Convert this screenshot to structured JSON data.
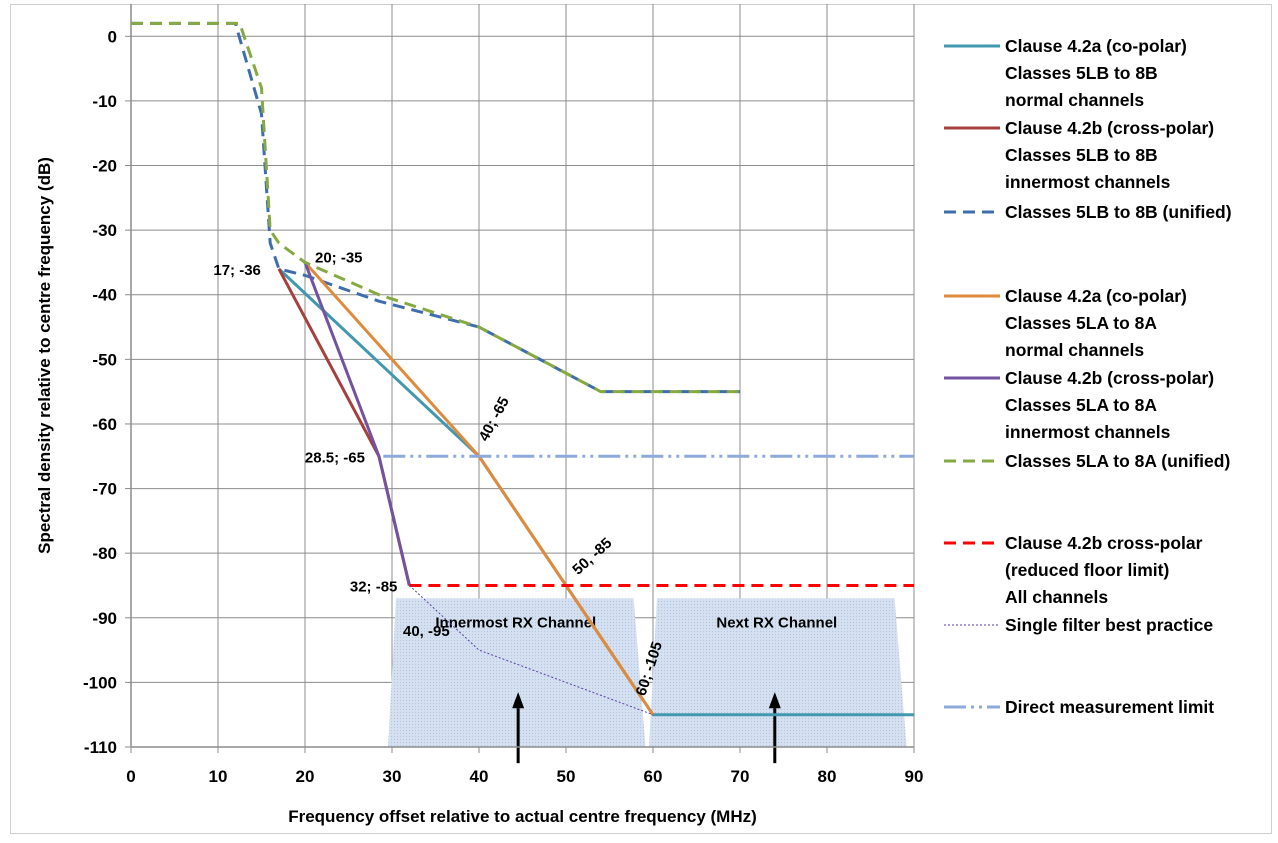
{
  "chart_data": {
    "type": "line",
    "xlabel": "Frequency offset relative to actual centre frequency (MHz)",
    "ylabel": "Spectral density relative to centre frequency (dB)",
    "xlim": [
      0,
      90
    ],
    "ylim": [
      -110,
      5
    ],
    "xticks": [
      0,
      10,
      20,
      30,
      40,
      50,
      60,
      70,
      80,
      90
    ],
    "yticks": [
      0,
      -10,
      -20,
      -30,
      -40,
      -50,
      -60,
      -70,
      -80,
      -90,
      -100,
      -110
    ],
    "grid": true,
    "legend_position": "right",
    "series": [
      {
        "name": "Clause 4.2a (co-polar) Classes 5LB to 8B normal channels",
        "color": "#4198AF",
        "style": "solid",
        "x": [
          17,
          40,
          60,
          90
        ],
        "y": [
          -36,
          -65,
          -105,
          -105
        ]
      },
      {
        "name": "Clause 4.2b (cross-polar) Classes 5LB to 8B innermost channels",
        "color": "#A5403D",
        "style": "solid",
        "x": [
          17,
          28.5,
          32
        ],
        "y": [
          -36,
          -65,
          -85
        ]
      },
      {
        "name": "Classes 5LB to 8B (unified)",
        "color": "#3E6DAE",
        "style": "dashed",
        "x": [
          0,
          12,
          15,
          16,
          17,
          20,
          28.5,
          40,
          54,
          70
        ],
        "y": [
          2,
          2,
          -12,
          -32,
          -36,
          -37,
          -41,
          -45,
          -55,
          -55
        ]
      },
      {
        "name": "Clause 4.2a (co-polar) Classes 5LA to 8A normal channels",
        "color": "#E08A3C",
        "style": "solid",
        "x": [
          20,
          40,
          60
        ],
        "y": [
          -35,
          -65,
          -105
        ]
      },
      {
        "name": "Clause 4.2b (cross-polar) Classes 5LA to 8A innermost channels",
        "color": "#7352A0",
        "style": "solid",
        "x": [
          20,
          28.5,
          32
        ],
        "y": [
          -35,
          -65,
          -85
        ]
      },
      {
        "name": "Classes 5LA to 8A (unified)",
        "color": "#86A944",
        "style": "dashed",
        "x": [
          0,
          12.5,
          15,
          16,
          17,
          20,
          28.5,
          40,
          54,
          70
        ],
        "y": [
          2,
          2,
          -8,
          -30,
          -32,
          -35,
          -40,
          -45,
          -55,
          -55
        ]
      },
      {
        "name": "Clause 4.2b cross-polar (reduced floor limit) All channels",
        "color": "#FF0000",
        "style": "dashed",
        "x": [
          32,
          90
        ],
        "y": [
          -85,
          -85
        ]
      },
      {
        "name": "Single filter best practice",
        "color": "#5B3FA6",
        "style": "dotted",
        "x": [
          32,
          40,
          60
        ],
        "y": [
          -85,
          -95,
          -105
        ]
      },
      {
        "name": "Direct measurement limit",
        "color": "#8EA9DB",
        "style": "dashdotdot",
        "x": [
          29,
          90
        ],
        "y": [
          -65,
          -65
        ]
      }
    ],
    "annotations": [
      {
        "text": "17; -36",
        "x": 17,
        "y": -36
      },
      {
        "text": "20; -35",
        "x": 20,
        "y": -35
      },
      {
        "text": "28.5; -65",
        "x": 28.5,
        "y": -65
      },
      {
        "text": "40; -65",
        "x": 40,
        "y": -65
      },
      {
        "text": "50, -85",
        "x": 50,
        "y": -85
      },
      {
        "text": "32; -85",
        "x": 32,
        "y": -85
      },
      {
        "text": "40, -95",
        "x": 40,
        "y": -95
      },
      {
        "text": "60; -105",
        "x": 60,
        "y": -105
      }
    ],
    "regions": [
      {
        "label": "Innermost RX Channel",
        "x_range": [
          30,
          58
        ],
        "arrow_x": 44.5
      },
      {
        "label": "Next RX Channel",
        "x_range": [
          60,
          88
        ],
        "arrow_x": 74
      }
    ]
  },
  "legend_items": [
    {
      "lines": [
        "Clause 4.2a (co-polar)",
        "Classes 5LB to 8B",
        "normal channels"
      ],
      "color": "#4198AF",
      "style": "solid"
    },
    {
      "lines": [
        "Clause 4.2b (cross-polar)",
        "Classes 5LB to 8B",
        "innermost channels"
      ],
      "color": "#A5403D",
      "style": "solid"
    },
    {
      "lines": [
        "Classes 5LB to 8B (unified)"
      ],
      "color": "#3E6DAE",
      "style": "dashed"
    },
    {
      "lines": [
        "Clause 4.2a (co-polar)",
        "Classes 5LA to 8A",
        "normal channels"
      ],
      "color": "#E08A3C",
      "style": "solid"
    },
    {
      "lines": [
        "Clause 4.2b (cross-polar)",
        "Classes 5LA to 8A",
        "innermost channels"
      ],
      "color": "#7352A0",
      "style": "solid"
    },
    {
      "lines": [
        "Classes 5LA to 8A (unified)"
      ],
      "color": "#86A944",
      "style": "dashed"
    },
    {
      "lines": [
        "Clause 4.2b cross-polar",
        "(reduced floor limit)",
        "All channels"
      ],
      "color": "#FF0000",
      "style": "dashed"
    },
    {
      "lines": [
        "Single filter best practice"
      ],
      "color": "#5B3FA6",
      "style": "dotted"
    },
    {
      "lines": [
        "Direct measurement limit"
      ],
      "color": "#8EA9DB",
      "style": "dashdotdot"
    }
  ]
}
